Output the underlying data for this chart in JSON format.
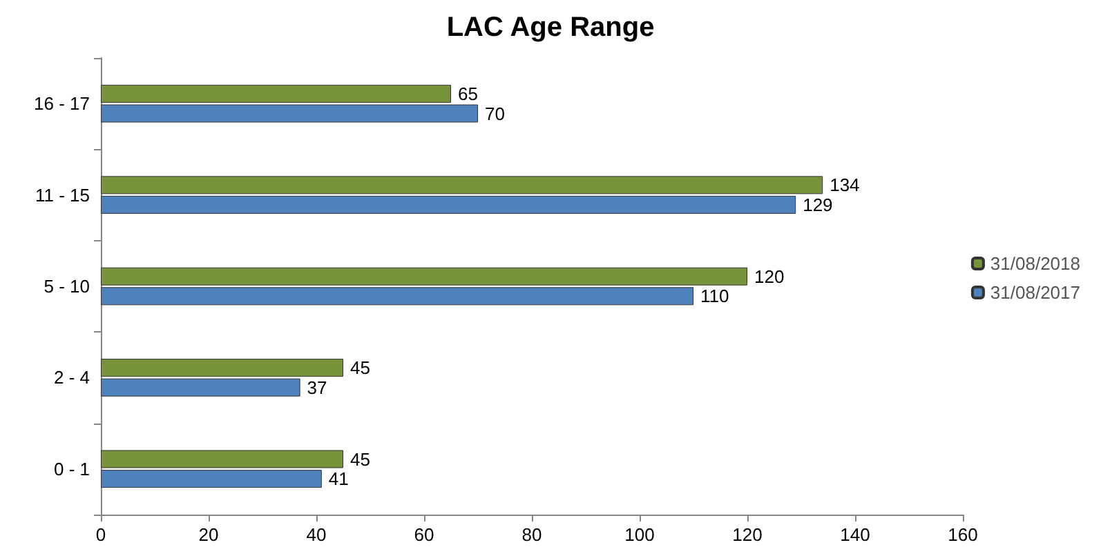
{
  "chart_data": {
    "type": "bar",
    "orientation": "horizontal",
    "title": "LAC Age Range",
    "categories": [
      "16 - 17",
      "11 - 15",
      "5 - 10",
      "2 - 4",
      "0 - 1"
    ],
    "series": [
      {
        "name": "31/08/2018",
        "color": "#77933c",
        "values": [
          65,
          134,
          120,
          45,
          45
        ]
      },
      {
        "name": "31/08/2017",
        "color": "#4f81bd",
        "values": [
          70,
          129,
          110,
          37,
          41
        ]
      }
    ],
    "xlim": [
      0,
      160
    ],
    "xticks": [
      0,
      20,
      40,
      60,
      80,
      100,
      120,
      140,
      160
    ],
    "grid": false,
    "legend": "right",
    "data_labels": true
  }
}
